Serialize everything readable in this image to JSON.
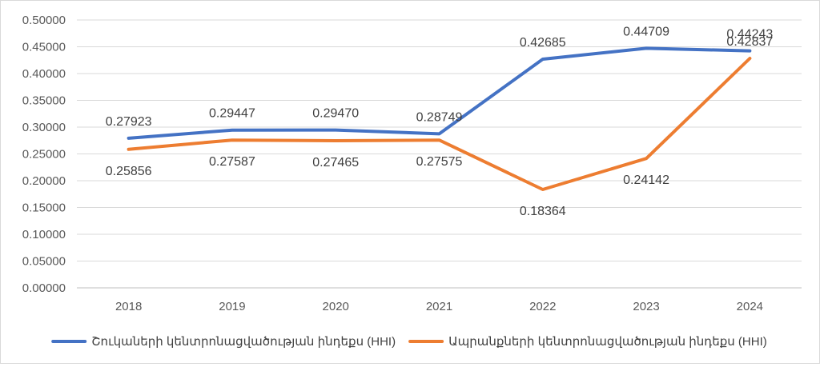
{
  "chart_data": {
    "type": "line",
    "title": "",
    "xlabel": "",
    "ylabel": "",
    "categories": [
      "2018",
      "2019",
      "2020",
      "2021",
      "2022",
      "2023",
      "2024"
    ],
    "ylim": [
      0,
      0.5
    ],
    "yticks": [
      0,
      0.05,
      0.1,
      0.15,
      0.2,
      0.25,
      0.3,
      0.35,
      0.4,
      0.45,
      0.5
    ],
    "ytick_labels": [
      "0.00000",
      "0.05000",
      "0.10000",
      "0.15000",
      "0.20000",
      "0.25000",
      "0.30000",
      "0.35000",
      "0.40000",
      "0.45000",
      "0.50000"
    ],
    "grid": true,
    "legend_position": "bottom",
    "series": [
      {
        "name": "Շուկաների կենտրոնացվածության ինդեքս (HHI)",
        "color": "#4472C4",
        "values": [
          0.27923,
          0.29447,
          0.2947,
          0.28749,
          0.42685,
          0.44709,
          0.44243
        ],
        "labels": [
          "0.27923",
          "0.29447",
          "0.29470",
          "0.28749",
          "0.42685",
          "0.44709",
          "0.44243"
        ]
      },
      {
        "name": "Ապրանքների կենտրոնացվածության ինդեքս (HHI)",
        "color": "#ED7D31",
        "values": [
          0.25856,
          0.27587,
          0.27465,
          0.27575,
          0.18364,
          0.24142,
          0.42837
        ],
        "labels": [
          "0.25856",
          "0.27587",
          "0.27465",
          "0.27575",
          "0.18364",
          "0.24142",
          "0.42837"
        ]
      }
    ]
  }
}
